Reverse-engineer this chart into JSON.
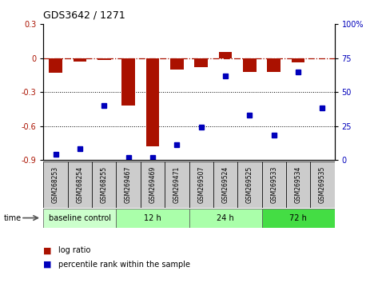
{
  "title": "GDS3642 / 1271",
  "samples": [
    "GSM268253",
    "GSM268254",
    "GSM268255",
    "GSM269467",
    "GSM269469",
    "GSM269471",
    "GSM269507",
    "GSM269524",
    "GSM269525",
    "GSM269533",
    "GSM269534",
    "GSM269535"
  ],
  "log_ratio": [
    -0.13,
    -0.03,
    -0.02,
    -0.42,
    -0.78,
    -0.1,
    -0.08,
    0.05,
    -0.12,
    -0.12,
    -0.04,
    0.0
  ],
  "percentile_rank": [
    4,
    8,
    40,
    2,
    2,
    11,
    24,
    62,
    33,
    18,
    65,
    38
  ],
  "groups": [
    {
      "label": "baseline control",
      "start": 0,
      "end": 3,
      "color": "#ccffcc"
    },
    {
      "label": "12 h",
      "start": 3,
      "end": 6,
      "color": "#aaffaa"
    },
    {
      "label": "24 h",
      "start": 6,
      "end": 9,
      "color": "#aaffaa"
    },
    {
      "label": "72 h",
      "start": 9,
      "end": 12,
      "color": "#44dd44"
    }
  ],
  "ylim_left": [
    -0.9,
    0.3
  ],
  "ylim_right": [
    0,
    100
  ],
  "bar_color": "#aa1100",
  "dot_color": "#0000bb",
  "hline_color": "#aa1100",
  "tick_color_left": "#aa1100",
  "tick_color_right": "#0000bb",
  "bg_color": "#ffffff",
  "sample_bg": "#cccccc"
}
